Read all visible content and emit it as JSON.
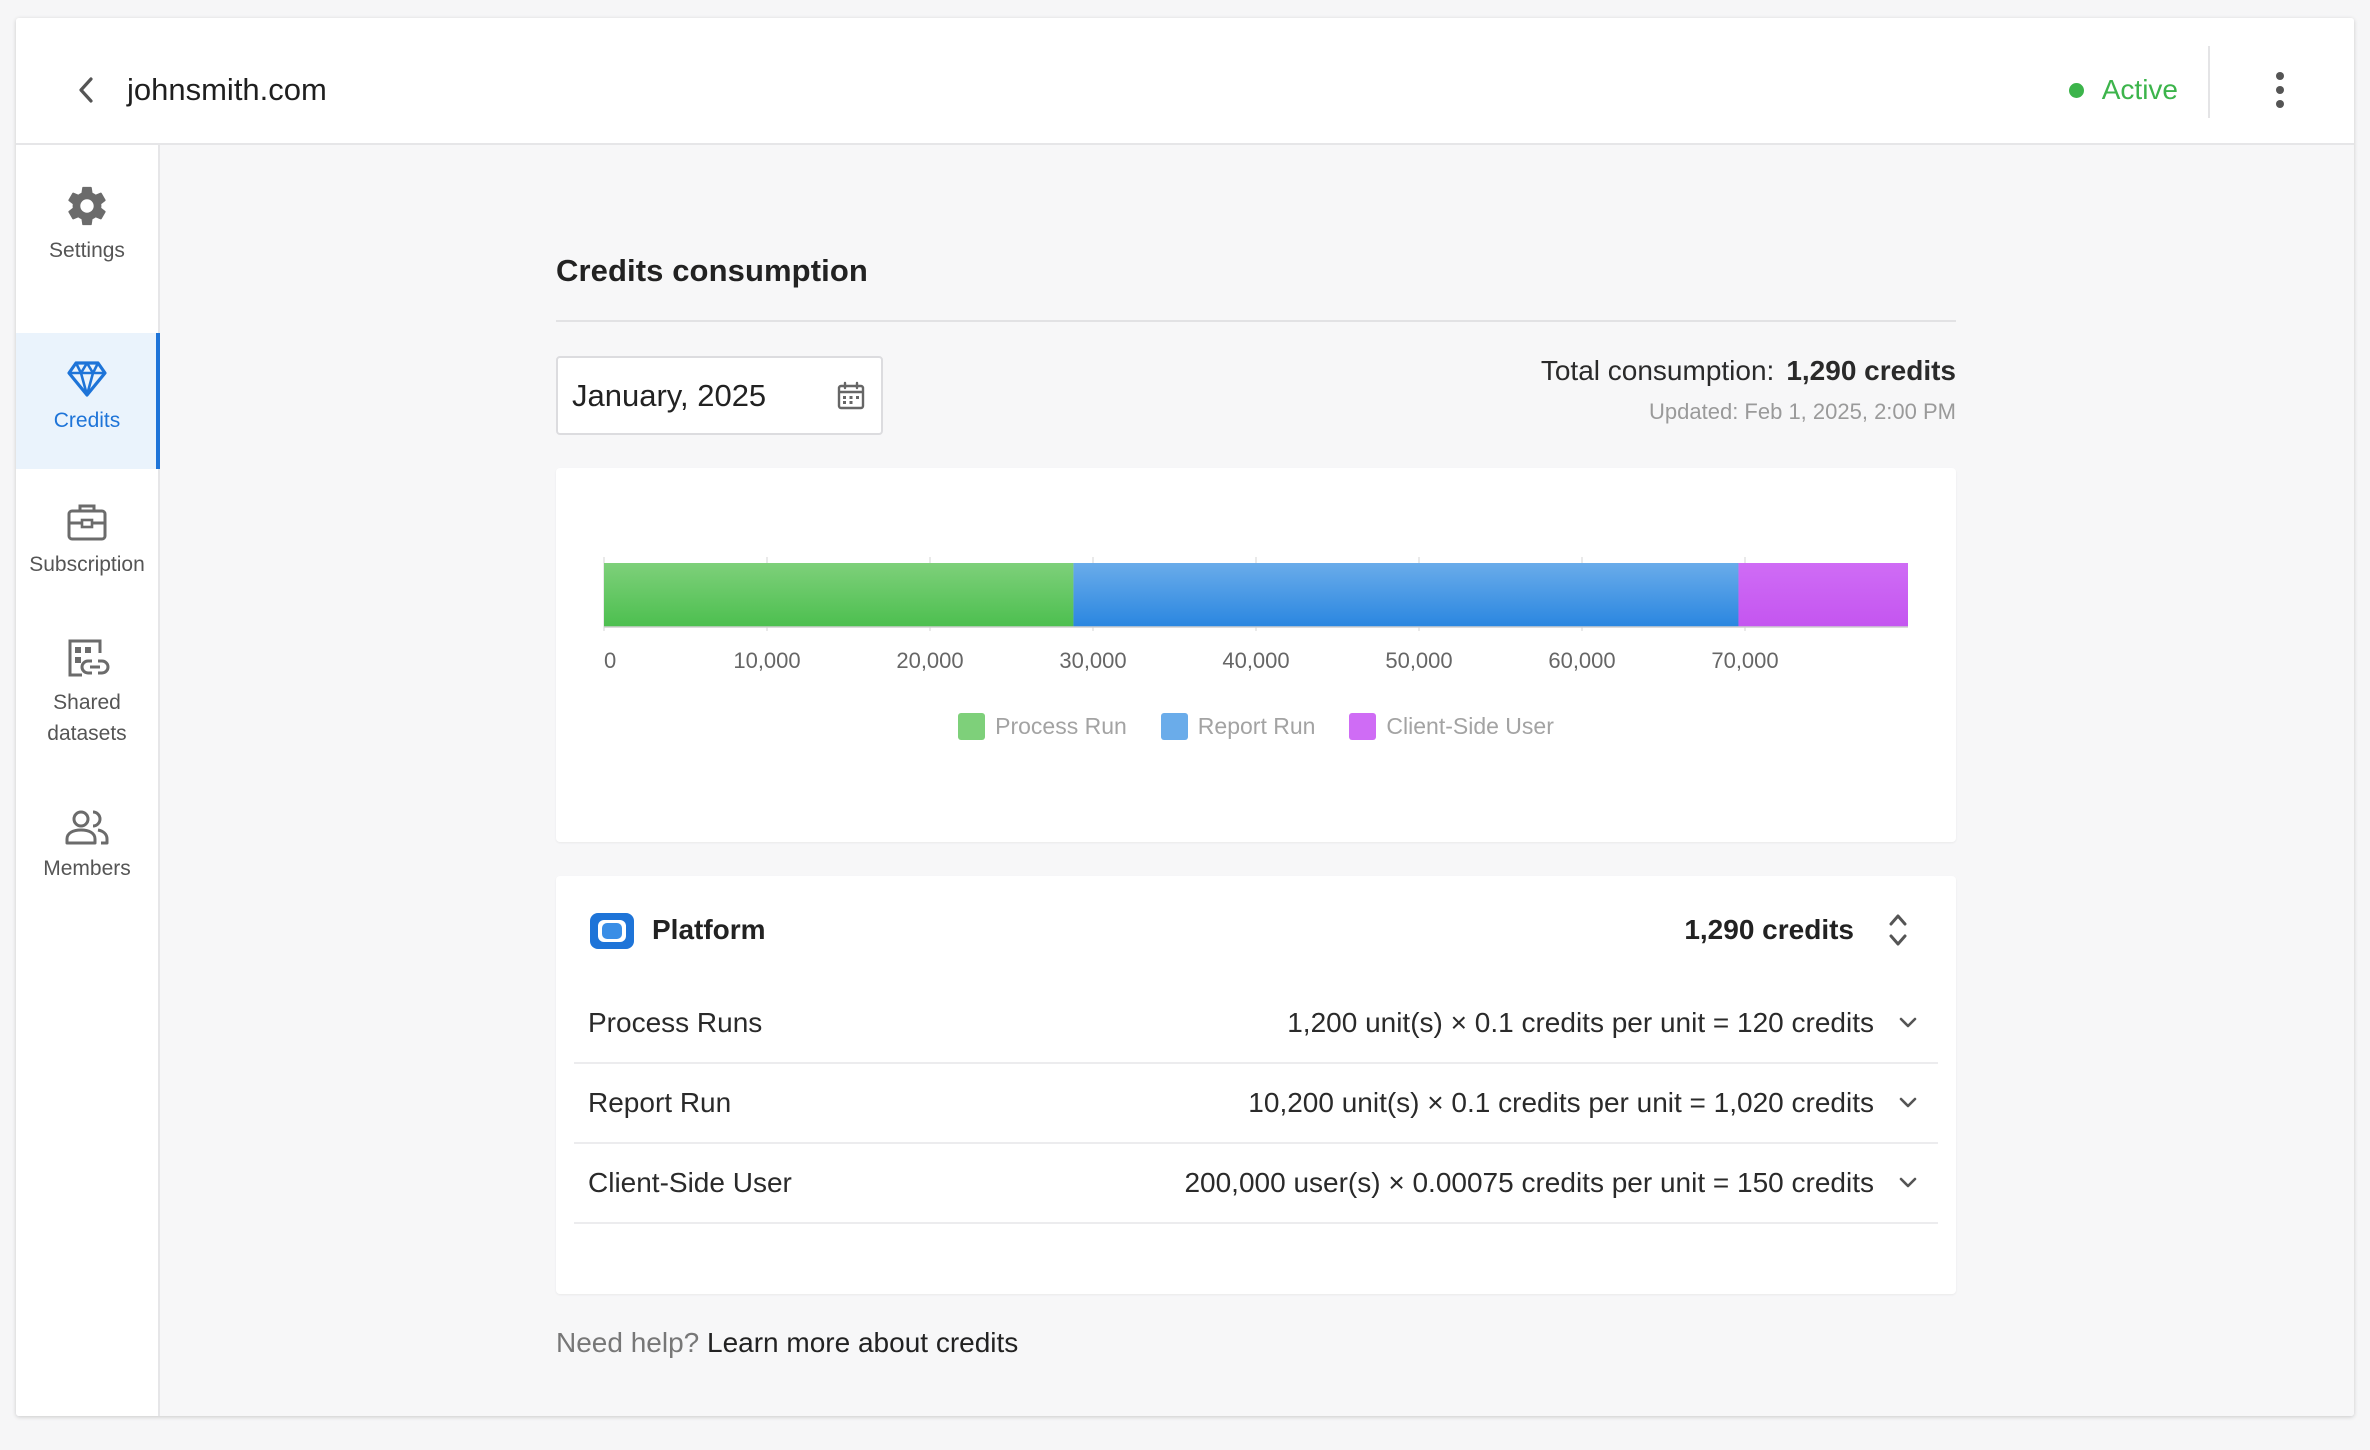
{
  "header": {
    "back_icon": "chevron-left-icon",
    "title": "johnsmith.com",
    "status_label": "Active",
    "status_color": "#3cb44b",
    "more_icon": "vertical-dots-icon"
  },
  "sidebar": {
    "items": [
      {
        "label": "Settings",
        "icon": "gear-icon"
      },
      {
        "label": "Credits",
        "icon": "diamond-icon",
        "active": true
      },
      {
        "label": "Subscription",
        "icon": "briefcase-icon"
      },
      {
        "label": "Shared datasets",
        "icon": "shared-dataset-icon"
      },
      {
        "label": "Members",
        "icon": "people-icon"
      }
    ]
  },
  "credits": {
    "title": "Credits consumption",
    "date_value": "January, 2025",
    "total_label": "Total consumption:",
    "total_value": "1,290 credits",
    "updated": "Updated: Feb 1, 2025, 2:00 PM"
  },
  "chart_data": {
    "type": "bar",
    "orientation": "horizontal-stacked",
    "xlim": [
      0,
      80000
    ],
    "ticks": [
      0,
      10000,
      20000,
      30000,
      40000,
      50000,
      60000,
      70000
    ],
    "tick_labels": [
      "0",
      "10,000",
      "20,000",
      "30,000",
      "40,000",
      "50,000",
      "60,000",
      "70,000"
    ],
    "series": [
      {
        "name": "Process Run",
        "value": 28800,
        "color": "#4cbf4f",
        "legend_color": "#7ed07a"
      },
      {
        "name": "Report Run",
        "value": 40800,
        "color": "#2a86e0",
        "legend_color": "#6aacea"
      },
      {
        "name": "Client-Side User",
        "value": 10400,
        "color": "#c455f0",
        "legend_color": "#cf6cf5"
      }
    ],
    "legend": "bottom-center"
  },
  "platform": {
    "name": "Platform",
    "logo_icon": "platform-logo-icon",
    "total": "1,290 credits",
    "rows": [
      {
        "name": "Process Runs",
        "formula": "1,200 unit(s) × 0.1 credits per unit = 120 credits"
      },
      {
        "name": "Report Run",
        "formula": "10,200 unit(s) × 0.1 credits per unit = 1,020 credits"
      },
      {
        "name": "Client-Side User",
        "formula": "200,000 user(s) × 0.00075 credits per unit = 150 credits"
      }
    ]
  },
  "help": {
    "question": "Need help?",
    "link": "Learn more about credits"
  }
}
